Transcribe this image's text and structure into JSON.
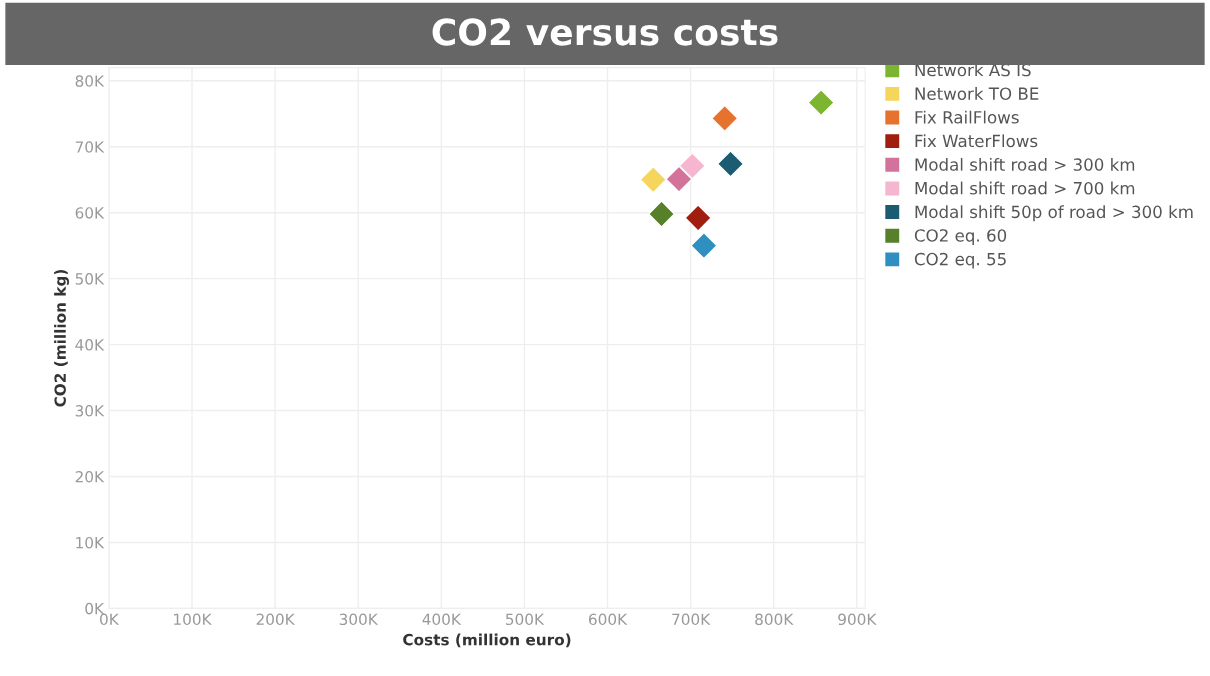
{
  "chart_data": {
    "type": "scatter",
    "title": "CO2 versus costs",
    "xlabel": "Costs (million euro)",
    "ylabel": "CO2 (million kg)",
    "xlim": [
      0,
      910000
    ],
    "ylim": [
      0,
      82000
    ],
    "xticks": [
      {
        "value": 0,
        "label": "0K"
      },
      {
        "value": 100000,
        "label": "100K"
      },
      {
        "value": 200000,
        "label": "200K"
      },
      {
        "value": 300000,
        "label": "300K"
      },
      {
        "value": 400000,
        "label": "400K"
      },
      {
        "value": 500000,
        "label": "500K"
      },
      {
        "value": 600000,
        "label": "600K"
      },
      {
        "value": 700000,
        "label": "700K"
      },
      {
        "value": 800000,
        "label": "800K"
      },
      {
        "value": 900000,
        "label": "900K"
      }
    ],
    "yticks": [
      {
        "value": 0,
        "label": "0K"
      },
      {
        "value": 10000,
        "label": "10K"
      },
      {
        "value": 20000,
        "label": "20K"
      },
      {
        "value": 30000,
        "label": "30K"
      },
      {
        "value": 40000,
        "label": "40K"
      },
      {
        "value": 50000,
        "label": "50K"
      },
      {
        "value": 60000,
        "label": "60K"
      },
      {
        "value": 70000,
        "label": "70K"
      },
      {
        "value": 80000,
        "label": "80K"
      }
    ],
    "grid": true,
    "legend": "top right",
    "marker": "diamond",
    "series": [
      {
        "name": "Network AS IS",
        "color": "#7cb530",
        "x": [
          857000
        ],
        "values": [
          76700
        ]
      },
      {
        "name": "Network TO BE",
        "color": "#f6d55c",
        "x": [
          655000
        ],
        "values": [
          65000
        ]
      },
      {
        "name": "Fix RailFlows",
        "color": "#e6722e",
        "x": [
          741000
        ],
        "values": [
          74300
        ]
      },
      {
        "name": "Fix WaterFlows",
        "color": "#a11d0e",
        "x": [
          709000
        ],
        "values": [
          59200
        ]
      },
      {
        "name": "Modal shift road > 300 km",
        "color": "#d3739c",
        "x": [
          686000
        ],
        "values": [
          65100
        ]
      },
      {
        "name": "Modal shift road > 700 km",
        "color": "#f6b6cf",
        "x": [
          702000
        ],
        "values": [
          67100
        ]
      },
      {
        "name": "Modal shift 50p of road > 300 km",
        "color": "#1b5c73",
        "x": [
          748000
        ],
        "values": [
          67400
        ]
      },
      {
        "name": "CO2 eq. 60",
        "color": "#57802a",
        "x": [
          665000
        ],
        "values": [
          59800
        ]
      },
      {
        "name": "CO2 eq. 55",
        "color": "#2e8fc0",
        "x": [
          716000
        ],
        "values": [
          55000
        ]
      }
    ]
  }
}
